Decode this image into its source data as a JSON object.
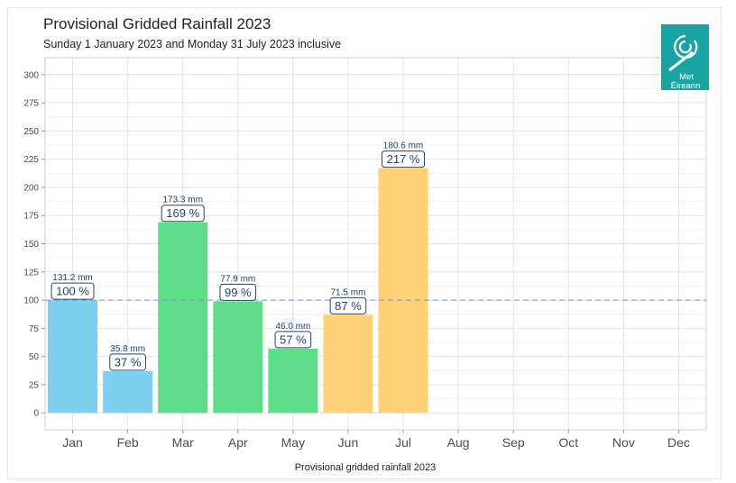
{
  "chart_data": {
    "type": "bar",
    "title": "Provisional Gridded Rainfall 2023",
    "subtitle": "Sunday 1 January 2023 and Monday 31 July 2023 inclusive",
    "caption": "Provisional gridded rainfall 2023",
    "categories": [
      "Jan",
      "Feb",
      "Mar",
      "Apr",
      "May",
      "Jun",
      "Jul",
      "Aug",
      "Sep",
      "Oct",
      "Nov",
      "Dec"
    ],
    "values": [
      100,
      37,
      169,
      99,
      57,
      87,
      217,
      null,
      null,
      null,
      null,
      null
    ],
    "mm_labels": [
      "131.2 mm",
      "35.8 mm",
      "173.3 mm",
      "77.9 mm",
      "46.0 mm",
      "71.5 mm",
      "180.6 mm",
      "",
      "",
      "",
      "",
      ""
    ],
    "pct_labels": [
      "100 %",
      "37 %",
      "169 %",
      "99 %",
      "57 %",
      "87 %",
      "217 %",
      "",
      "",
      "",
      "",
      ""
    ],
    "bar_colors": [
      "#7ecff0",
      "#7ecff0",
      "#5fdc8a",
      "#5fdc8a",
      "#5fdc8a",
      "#ffd27a",
      "#ffd27a",
      "",
      "",
      "",
      "",
      ""
    ],
    "ylim": [
      -15,
      315
    ],
    "yticks": [
      0,
      25,
      50,
      75,
      100,
      125,
      150,
      175,
      200,
      225,
      250,
      275,
      300
    ],
    "reference_line": 100,
    "xlabel": "",
    "ylabel": "",
    "grid": true
  },
  "logo": {
    "line1": "Met",
    "line2": "Éireann",
    "color": "#1aa3a3"
  }
}
